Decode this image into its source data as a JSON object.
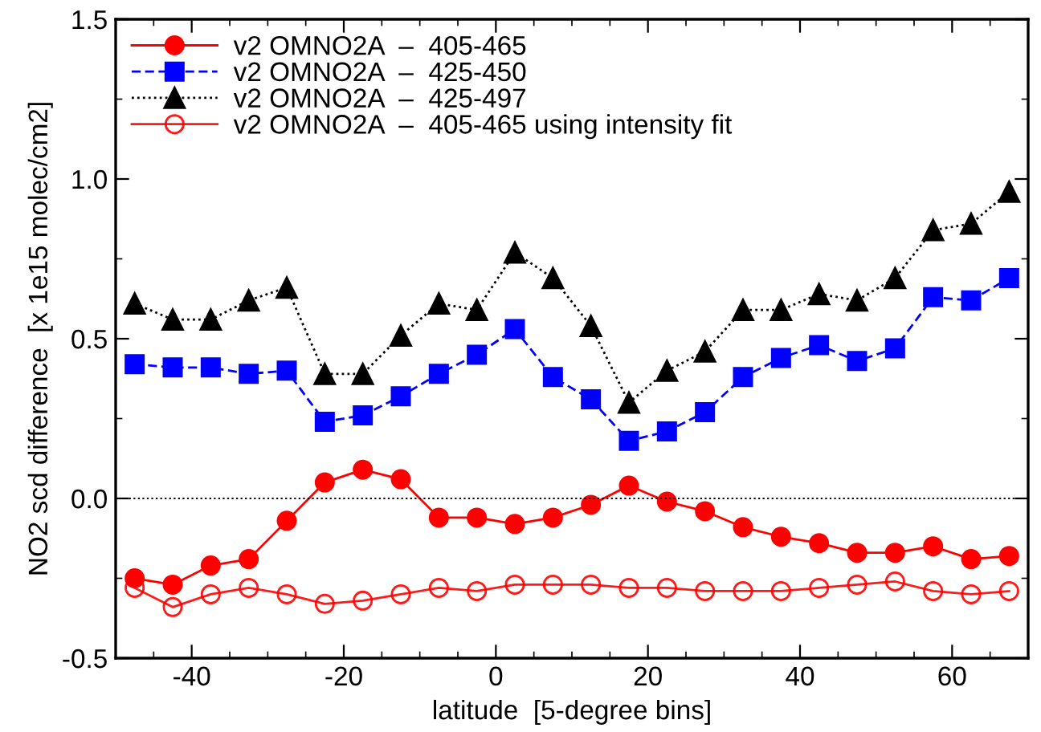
{
  "chart_data": {
    "type": "line",
    "xlabel": "latitude  [5-degree bins]",
    "ylabel": "NO2 scd difference  [x 1e15 molec/cm2]",
    "x": [
      -47.5,
      -42.5,
      -37.5,
      -32.5,
      -27.5,
      -22.5,
      -17.5,
      -12.5,
      -7.5,
      -2.5,
      2.5,
      7.5,
      12.5,
      17.5,
      22.5,
      27.5,
      32.5,
      37.5,
      42.5,
      47.5,
      52.5,
      57.5,
      62.5,
      67.5
    ],
    "xlim": [
      -50,
      70
    ],
    "xticks": [
      -40,
      -20,
      0,
      20,
      40,
      60
    ],
    "ylim": [
      -0.5,
      1.5
    ],
    "yticks": [
      {
        "value": -0.5,
        "label": "-0.5"
      },
      {
        "value": 0,
        "label": "0.0"
      },
      {
        "value": 0.5,
        "label": "0.5"
      },
      {
        "value": 1.0,
        "label": "1.0"
      },
      {
        "value": 1.5,
        "label": "1.5"
      }
    ],
    "grid": false,
    "legend": "top left",
    "series": [
      {
        "name": "v2 OMNO2A  –  405-465",
        "color": "#ff0000",
        "marker": "circle",
        "line_style": "solid",
        "values": [
          -0.25,
          -0.27,
          -0.21,
          -0.19,
          -0.07,
          0.05,
          0.09,
          0.06,
          -0.06,
          -0.06,
          -0.08,
          -0.06,
          -0.02,
          0.04,
          -0.01,
          -0.04,
          -0.09,
          -0.12,
          -0.14,
          -0.17,
          -0.17,
          -0.15,
          -0.19,
          -0.18
        ]
      },
      {
        "name": "v2 OMNO2A  –  425-450",
        "color": "#0000ff",
        "marker": "square",
        "line_style": "dashed",
        "values": [
          0.42,
          0.41,
          0.41,
          0.39,
          0.4,
          0.24,
          0.26,
          0.32,
          0.39,
          0.45,
          0.53,
          0.38,
          0.31,
          0.18,
          0.21,
          0.27,
          0.38,
          0.44,
          0.48,
          0.43,
          0.47,
          0.63,
          0.62,
          0.69
        ]
      },
      {
        "name": "v2 OMNO2A  –  425-497",
        "color": "#000000",
        "marker": "triangle",
        "line_style": "dotted",
        "values": [
          0.61,
          0.56,
          0.56,
          0.62,
          0.66,
          0.39,
          0.39,
          0.51,
          0.61,
          0.59,
          0.77,
          0.69,
          0.54,
          0.3,
          0.4,
          0.46,
          0.59,
          0.59,
          0.64,
          0.62,
          0.69,
          0.84,
          0.86,
          0.96
        ]
      },
      {
        "name": "v2 OMNO2A  –  405-465 using intensity fit",
        "color": "#ff0000",
        "marker": "open circle",
        "line_style": "solid",
        "values": [
          -0.28,
          -0.34,
          -0.3,
          -0.28,
          -0.3,
          -0.33,
          -0.32,
          -0.3,
          -0.28,
          -0.29,
          -0.27,
          -0.27,
          -0.27,
          -0.28,
          -0.28,
          -0.29,
          -0.29,
          -0.29,
          -0.28,
          -0.27,
          -0.26,
          -0.29,
          -0.3,
          -0.29
        ]
      }
    ],
    "ref_lines": [
      {
        "axis": "y",
        "value": 0,
        "color": "#000000",
        "line_style": "dotted"
      }
    ]
  }
}
